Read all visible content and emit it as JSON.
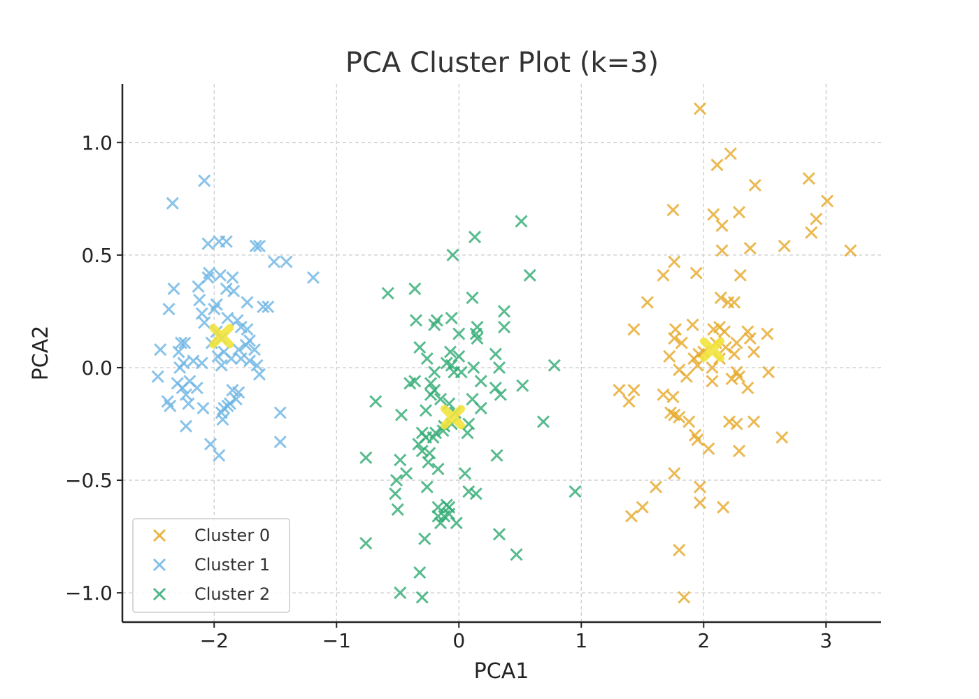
{
  "chart_data": {
    "type": "scatter",
    "title": "PCA Cluster Plot (k=3)",
    "xlabel": "PCA1",
    "ylabel": "PCA2",
    "xlim": [
      -2.75,
      3.45
    ],
    "ylim": [
      -1.13,
      1.26
    ],
    "xticks": [
      -2,
      -1,
      0,
      1,
      2,
      3
    ],
    "xtick_labels": [
      "−2",
      "−1",
      "0",
      "1",
      "2",
      "3"
    ],
    "yticks": [
      -1.0,
      -0.5,
      0.0,
      0.5,
      1.0
    ],
    "ytick_labels": [
      "−1.0",
      "−0.5",
      "0.0",
      "0.5",
      "1.0"
    ],
    "grid": true,
    "legend_position": "lower-left",
    "series": [
      {
        "name": "Cluster 0",
        "color": "#E6A727",
        "marker": "x",
        "points": [
          [
            1.97,
            1.15
          ],
          [
            2.22,
            0.95
          ],
          [
            2.11,
            0.9
          ],
          [
            2.42,
            0.81
          ],
          [
            2.86,
            0.84
          ],
          [
            3.01,
            0.74
          ],
          [
            1.75,
            0.7
          ],
          [
            2.08,
            0.68
          ],
          [
            2.29,
            0.69
          ],
          [
            2.15,
            0.63
          ],
          [
            2.92,
            0.66
          ],
          [
            2.88,
            0.6
          ],
          [
            2.15,
            0.52
          ],
          [
            2.38,
            0.53
          ],
          [
            2.66,
            0.54
          ],
          [
            3.2,
            0.52
          ],
          [
            1.76,
            0.47
          ],
          [
            1.67,
            0.41
          ],
          [
            1.94,
            0.42
          ],
          [
            2.3,
            0.41
          ],
          [
            1.54,
            0.29
          ],
          [
            2.14,
            0.31
          ],
          [
            2.2,
            0.29
          ],
          [
            2.25,
            0.29
          ],
          [
            1.43,
            0.17
          ],
          [
            1.77,
            0.17
          ],
          [
            1.91,
            0.19
          ],
          [
            2.08,
            0.17
          ],
          [
            2.13,
            0.18
          ],
          [
            2.17,
            0.16
          ],
          [
            2.36,
            0.16
          ],
          [
            2.38,
            0.13
          ],
          [
            2.52,
            0.15
          ],
          [
            1.76,
            0.13
          ],
          [
            1.82,
            0.11
          ],
          [
            1.96,
            0.06
          ],
          [
            2.1,
            0.11
          ],
          [
            2.18,
            0.09
          ],
          [
            2.27,
            0.11
          ],
          [
            1.72,
            0.05
          ],
          [
            1.92,
            0.04
          ],
          [
            2.0,
            0.07
          ],
          [
            2.13,
            0.04
          ],
          [
            2.25,
            0.06
          ],
          [
            2.41,
            0.07
          ],
          [
            1.95,
            0.01
          ],
          [
            2.07,
            0.0
          ],
          [
            2.27,
            -0.02
          ],
          [
            2.29,
            -0.04
          ],
          [
            2.53,
            -0.02
          ],
          [
            1.8,
            -0.01
          ],
          [
            1.86,
            -0.04
          ],
          [
            2.07,
            -0.06
          ],
          [
            2.23,
            -0.05
          ],
          [
            2.36,
            -0.09
          ],
          [
            1.31,
            -0.1
          ],
          [
            1.43,
            -0.1
          ],
          [
            1.39,
            -0.15
          ],
          [
            1.67,
            -0.12
          ],
          [
            1.75,
            -0.13
          ],
          [
            1.73,
            -0.2
          ],
          [
            1.76,
            -0.21
          ],
          [
            1.8,
            -0.22
          ],
          [
            1.88,
            -0.24
          ],
          [
            2.21,
            -0.24
          ],
          [
            2.27,
            -0.25
          ],
          [
            2.41,
            -0.24
          ],
          [
            1.93,
            -0.3
          ],
          [
            1.95,
            -0.32
          ],
          [
            2.04,
            -0.36
          ],
          [
            2.29,
            -0.37
          ],
          [
            2.64,
            -0.31
          ],
          [
            1.76,
            -0.47
          ],
          [
            1.61,
            -0.53
          ],
          [
            1.97,
            -0.53
          ],
          [
            1.41,
            -0.66
          ],
          [
            1.5,
            -0.62
          ],
          [
            1.97,
            -0.6
          ],
          [
            2.16,
            -0.62
          ],
          [
            1.8,
            -0.81
          ],
          [
            1.84,
            -1.02
          ]
        ]
      },
      {
        "name": "Cluster 1",
        "color": "#6CB4E4",
        "marker": "x",
        "points": [
          [
            -2.08,
            0.83
          ],
          [
            -2.34,
            0.73
          ],
          [
            -2.05,
            0.55
          ],
          [
            -1.96,
            0.56
          ],
          [
            -1.9,
            0.56
          ],
          [
            -1.66,
            0.54
          ],
          [
            -1.63,
            0.54
          ],
          [
            -1.51,
            0.47
          ],
          [
            -1.41,
            0.47
          ],
          [
            -1.19,
            0.4
          ],
          [
            -2.33,
            0.35
          ],
          [
            -2.13,
            0.36
          ],
          [
            -2.05,
            0.4
          ],
          [
            -2.04,
            0.42
          ],
          [
            -1.95,
            0.41
          ],
          [
            -1.85,
            0.4
          ],
          [
            -1.84,
            0.34
          ],
          [
            -1.9,
            0.35
          ],
          [
            -2.12,
            0.3
          ],
          [
            -1.98,
            0.28
          ],
          [
            -1.73,
            0.29
          ],
          [
            -1.56,
            0.27
          ],
          [
            -1.6,
            0.27
          ],
          [
            -2.37,
            0.26
          ],
          [
            -2.1,
            0.24
          ],
          [
            -2.0,
            0.26
          ],
          [
            -2.08,
            0.2
          ],
          [
            -1.89,
            0.22
          ],
          [
            -1.81,
            0.21
          ],
          [
            -1.78,
            0.18
          ],
          [
            -1.73,
            0.17
          ],
          [
            -1.98,
            0.16
          ],
          [
            -1.94,
            0.13
          ],
          [
            -2.02,
            0.11
          ],
          [
            -2.27,
            0.11
          ],
          [
            -2.29,
            0.07
          ],
          [
            -2.24,
            0.11
          ],
          [
            -1.71,
            0.12
          ],
          [
            -1.74,
            0.1
          ],
          [
            -2.44,
            0.08
          ],
          [
            -1.92,
            0.07
          ],
          [
            -1.8,
            0.08
          ],
          [
            -1.67,
            0.08
          ],
          [
            -1.97,
            0.05
          ],
          [
            -2.17,
            0.03
          ],
          [
            -1.94,
            0.01
          ],
          [
            -1.86,
            0.04
          ],
          [
            -1.78,
            0.04
          ],
          [
            -1.71,
            0.03
          ],
          [
            -2.25,
            0.02
          ],
          [
            -2.1,
            0.02
          ],
          [
            -1.65,
            0.01
          ],
          [
            -2.28,
            0.0
          ],
          [
            -1.63,
            -0.03
          ],
          [
            -2.46,
            -0.04
          ],
          [
            -2.3,
            -0.07
          ],
          [
            -2.2,
            -0.06
          ],
          [
            -2.14,
            -0.09
          ],
          [
            -2.26,
            -0.09
          ],
          [
            -1.85,
            -0.1
          ],
          [
            -1.8,
            -0.11
          ],
          [
            -2.23,
            -0.12
          ],
          [
            -1.82,
            -0.14
          ],
          [
            -2.38,
            -0.15
          ],
          [
            -2.36,
            -0.17
          ],
          [
            -2.21,
            -0.16
          ],
          [
            -1.89,
            -0.17
          ],
          [
            -1.92,
            -0.18
          ],
          [
            -1.87,
            -0.16
          ],
          [
            -2.09,
            -0.18
          ],
          [
            -1.93,
            -0.23
          ],
          [
            -1.94,
            -0.2
          ],
          [
            -1.46,
            -0.2
          ],
          [
            -2.23,
            -0.26
          ],
          [
            -2.03,
            -0.34
          ],
          [
            -1.46,
            -0.33
          ],
          [
            -1.96,
            -0.39
          ]
        ]
      },
      {
        "name": "Cluster 2",
        "color": "#2EAA72",
        "marker": "x",
        "points": [
          [
            0.51,
            0.65
          ],
          [
            0.13,
            0.58
          ],
          [
            -0.05,
            0.5
          ],
          [
            0.58,
            0.41
          ],
          [
            -0.58,
            0.33
          ],
          [
            -0.36,
            0.35
          ],
          [
            0.11,
            0.31
          ],
          [
            0.37,
            0.25
          ],
          [
            -0.06,
            0.22
          ],
          [
            -0.35,
            0.21
          ],
          [
            -0.18,
            0.21
          ],
          [
            -0.2,
            0.19
          ],
          [
            0.15,
            0.18
          ],
          [
            0.37,
            0.18
          ],
          [
            0.0,
            0.15
          ],
          [
            0.14,
            0.15
          ],
          [
            0.15,
            0.13
          ],
          [
            -0.32,
            0.09
          ],
          [
            -0.07,
            0.07
          ],
          [
            -0.26,
            0.04
          ],
          [
            0.0,
            0.05
          ],
          [
            0.3,
            0.06
          ],
          [
            -0.1,
            0.02
          ],
          [
            -0.06,
            0.01
          ],
          [
            0.12,
            0.0
          ],
          [
            0.33,
            0.0
          ],
          [
            0.78,
            0.01
          ],
          [
            -0.2,
            -0.02
          ],
          [
            -0.04,
            -0.02
          ],
          [
            0.02,
            -0.02
          ],
          [
            0.18,
            -0.06
          ],
          [
            -0.4,
            -0.07
          ],
          [
            -0.36,
            -0.06
          ],
          [
            -0.23,
            -0.07
          ],
          [
            -0.2,
            -0.1
          ],
          [
            0.3,
            -0.09
          ],
          [
            0.52,
            -0.08
          ],
          [
            0.34,
            -0.12
          ],
          [
            -0.68,
            -0.15
          ],
          [
            -0.23,
            -0.12
          ],
          [
            -0.15,
            -0.14
          ],
          [
            0.11,
            -0.14
          ],
          [
            -0.08,
            -0.16
          ],
          [
            0.18,
            -0.18
          ],
          [
            -0.47,
            -0.21
          ],
          [
            -0.27,
            -0.19
          ],
          [
            -0.03,
            -0.2
          ],
          [
            -0.06,
            -0.25
          ],
          [
            0.08,
            -0.25
          ],
          [
            0.69,
            -0.24
          ],
          [
            -0.12,
            -0.26
          ],
          [
            -0.19,
            -0.29
          ],
          [
            -0.3,
            -0.29
          ],
          [
            -0.27,
            -0.31
          ],
          [
            -0.21,
            -0.31
          ],
          [
            -0.13,
            -0.28
          ],
          [
            0.07,
            -0.29
          ],
          [
            -0.33,
            -0.34
          ],
          [
            -0.3,
            -0.37
          ],
          [
            -0.24,
            -0.38
          ],
          [
            -0.76,
            -0.4
          ],
          [
            0.31,
            -0.39
          ],
          [
            -0.25,
            -0.42
          ],
          [
            -0.48,
            -0.41
          ],
          [
            -0.17,
            -0.45
          ],
          [
            -0.51,
            -0.5
          ],
          [
            0.05,
            -0.47
          ],
          [
            -0.26,
            -0.53
          ],
          [
            -0.43,
            -0.47
          ],
          [
            -0.52,
            -0.56
          ],
          [
            -0.1,
            -0.61
          ],
          [
            -0.08,
            -0.62
          ],
          [
            -0.08,
            -0.65
          ],
          [
            -0.12,
            -0.66
          ],
          [
            -0.15,
            -0.69
          ],
          [
            0.08,
            -0.55
          ],
          [
            0.14,
            -0.56
          ],
          [
            -0.5,
            -0.63
          ],
          [
            -0.17,
            -0.62
          ],
          [
            -0.17,
            -0.66
          ],
          [
            0.95,
            -0.55
          ],
          [
            -0.02,
            -0.69
          ],
          [
            0.33,
            -0.74
          ],
          [
            -0.28,
            -0.76
          ],
          [
            -0.76,
            -0.78
          ],
          [
            0.47,
            -0.83
          ],
          [
            -0.32,
            -0.91
          ],
          [
            -0.48,
            -1.0
          ],
          [
            -0.3,
            -1.02
          ]
        ]
      }
    ],
    "centroids": {
      "color": "#F2E33D",
      "points": [
        [
          -1.94,
          0.14
        ],
        [
          2.07,
          0.08
        ],
        [
          -0.05,
          -0.22
        ]
      ]
    }
  }
}
